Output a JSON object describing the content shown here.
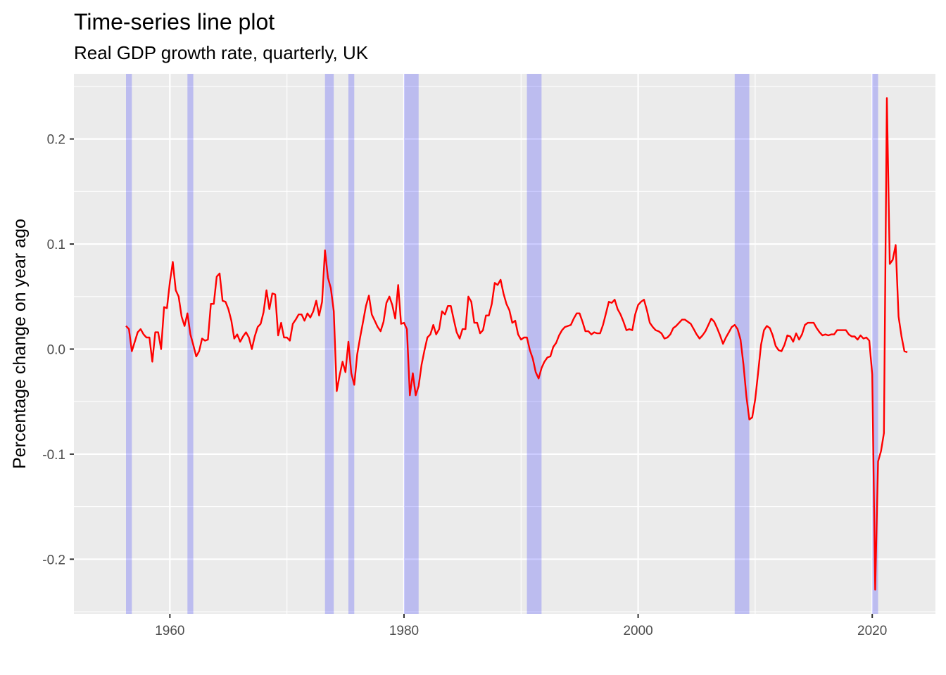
{
  "chart_data": {
    "type": "line",
    "title": "Time-series line plot",
    "subtitle": "Real GDP growth rate, quarterly, UK",
    "xlabel": "",
    "ylabel": "Percentage change on year ago",
    "xlim": [
      1951.8,
      2025.4
    ],
    "ylim": [
      -0.252,
      0.262
    ],
    "x_ticks": [
      1960,
      1980,
      2000,
      2020
    ],
    "x_tick_labels": [
      "1960",
      "1980",
      "2000",
      "2020"
    ],
    "y_ticks": [
      -0.2,
      -0.1,
      0.0,
      0.1,
      0.2
    ],
    "y_tick_labels": [
      "-0.2",
      "-0.1",
      "0.0",
      "0.1",
      "0.2"
    ],
    "grid": true,
    "legend": "none",
    "colors": {
      "line": "#ff0000",
      "recession": "#0000ff",
      "panel": "#ebebeb",
      "grid": "#ffffff"
    },
    "recessions": [
      [
        1956.25,
        1956.75
      ],
      [
        1961.5,
        1962.0
      ],
      [
        1973.25,
        1974.0
      ],
      [
        1975.25,
        1975.75
      ],
      [
        1980.0,
        1981.25
      ],
      [
        1990.5,
        1991.75
      ],
      [
        2008.25,
        2009.5
      ],
      [
        2020.0,
        2020.5
      ]
    ],
    "series": [
      {
        "x": [
          1956.25,
          1956.5,
          1956.75,
          1957.0,
          1957.25,
          1957.5,
          1957.75,
          1958.0,
          1958.25,
          1958.5,
          1958.75,
          1959.0,
          1959.25,
          1959.5,
          1959.75,
          1960.0,
          1960.25,
          1960.5,
          1960.75,
          1961.0,
          1961.25,
          1961.5,
          1961.75,
          1962.0,
          1962.25,
          1962.5,
          1962.75,
          1963.0,
          1963.25,
          1963.5,
          1963.75,
          1964.0,
          1964.25,
          1964.5,
          1964.75,
          1965.0,
          1965.25,
          1965.5,
          1965.75,
          1966.0,
          1966.25,
          1966.5,
          1966.75,
          1967.0,
          1967.25,
          1967.5,
          1967.75,
          1968.0,
          1968.25,
          1968.5,
          1968.75,
          1969.0,
          1969.25,
          1969.5,
          1969.75,
          1970.0,
          1970.25,
          1970.5,
          1970.75,
          1971.0,
          1971.25,
          1971.5,
          1971.75,
          1972.0,
          1972.25,
          1972.5,
          1972.75,
          1973.0,
          1973.25,
          1973.5,
          1973.75,
          1974.0,
          1974.25,
          1974.5,
          1974.75,
          1975.0,
          1975.25,
          1975.5,
          1975.75,
          1976.0,
          1976.25,
          1976.5,
          1976.75,
          1977.0,
          1977.25,
          1977.5,
          1977.75,
          1978.0,
          1978.25,
          1978.5,
          1978.75,
          1979.0,
          1979.25,
          1979.5,
          1979.75,
          1980.0,
          1980.25,
          1980.5,
          1980.75,
          1981.0,
          1981.25,
          1981.5,
          1981.75,
          1982.0,
          1982.25,
          1982.5,
          1982.75,
          1983.0,
          1983.25,
          1983.5,
          1983.75,
          1984.0,
          1984.25,
          1984.5,
          1984.75,
          1985.0,
          1985.25,
          1985.5,
          1985.75,
          1986.0,
          1986.25,
          1986.5,
          1986.75,
          1987.0,
          1987.25,
          1987.5,
          1987.75,
          1988.0,
          1988.25,
          1988.5,
          1988.75,
          1989.0,
          1989.25,
          1989.5,
          1989.75,
          1990.0,
          1990.25,
          1990.5,
          1990.75,
          1991.0,
          1991.25,
          1991.5,
          1991.75,
          1992.0,
          1992.25,
          1992.5,
          1992.75,
          1993.0,
          1993.25,
          1993.5,
          1993.75,
          1994.0,
          1994.25,
          1994.5,
          1994.75,
          1995.0,
          1995.25,
          1995.5,
          1995.75,
          1996.0,
          1996.25,
          1996.5,
          1996.75,
          1997.0,
          1997.25,
          1997.5,
          1997.75,
          1998.0,
          1998.25,
          1998.5,
          1998.75,
          1999.0,
          1999.25,
          1999.5,
          1999.75,
          2000.0,
          2000.25,
          2000.5,
          2000.75,
          2001.0,
          2001.25,
          2001.5,
          2001.75,
          2002.0,
          2002.25,
          2002.5,
          2002.75,
          2003.0,
          2003.25,
          2003.5,
          2003.75,
          2004.0,
          2004.25,
          2004.5,
          2004.75,
          2005.0,
          2005.25,
          2005.5,
          2005.75,
          2006.0,
          2006.25,
          2006.5,
          2006.75,
          2007.0,
          2007.25,
          2007.5,
          2007.75,
          2008.0,
          2008.25,
          2008.5,
          2008.75,
          2009.0,
          2009.25,
          2009.5,
          2009.75,
          2010.0,
          2010.25,
          2010.5,
          2010.75,
          2011.0,
          2011.25,
          2011.5,
          2011.75,
          2012.0,
          2012.25,
          2012.5,
          2012.75,
          2013.0,
          2013.25,
          2013.5,
          2013.75,
          2014.0,
          2014.25,
          2014.5,
          2014.75,
          2015.0,
          2015.25,
          2015.5,
          2015.75,
          2016.0,
          2016.25,
          2016.5,
          2016.75,
          2017.0,
          2017.25,
          2017.5,
          2017.75,
          2018.0,
          2018.25,
          2018.5,
          2018.75,
          2019.0,
          2019.25,
          2019.5,
          2019.75,
          2020.0,
          2020.25,
          2020.5,
          2020.75,
          2021.0,
          2021.25,
          2021.5,
          2021.75,
          2022.0,
          2022.25,
          2022.5,
          2022.75,
          2023.0
        ],
        "values": [
          0.022,
          0.019,
          -0.002,
          0.007,
          0.016,
          0.019,
          0.014,
          0.011,
          0.011,
          -0.012,
          0.016,
          0.016,
          0.0,
          0.04,
          0.039,
          0.064,
          0.083,
          0.056,
          0.05,
          0.031,
          0.022,
          0.034,
          0.014,
          0.004,
          -0.007,
          -0.002,
          0.01,
          0.008,
          0.009,
          0.043,
          0.043,
          0.069,
          0.072,
          0.046,
          0.045,
          0.038,
          0.027,
          0.01,
          0.014,
          0.007,
          0.012,
          0.016,
          0.011,
          0.0,
          0.012,
          0.021,
          0.024,
          0.035,
          0.056,
          0.038,
          0.053,
          0.052,
          0.013,
          0.025,
          0.011,
          0.011,
          0.008,
          0.024,
          0.028,
          0.033,
          0.033,
          0.027,
          0.034,
          0.03,
          0.036,
          0.046,
          0.032,
          0.045,
          0.094,
          0.068,
          0.058,
          0.036,
          -0.04,
          -0.025,
          -0.012,
          -0.022,
          0.007,
          -0.023,
          -0.034,
          -0.005,
          0.011,
          0.026,
          0.041,
          0.051,
          0.033,
          0.027,
          0.021,
          0.017,
          0.026,
          0.044,
          0.05,
          0.042,
          0.029,
          0.061,
          0.024,
          0.025,
          0.019,
          -0.044,
          -0.023,
          -0.044,
          -0.035,
          -0.015,
          -0.001,
          0.011,
          0.014,
          0.023,
          0.014,
          0.019,
          0.036,
          0.033,
          0.041,
          0.041,
          0.028,
          0.016,
          0.01,
          0.019,
          0.019,
          0.05,
          0.045,
          0.025,
          0.025,
          0.015,
          0.018,
          0.032,
          0.032,
          0.043,
          0.063,
          0.061,
          0.066,
          0.053,
          0.043,
          0.037,
          0.025,
          0.027,
          0.014,
          0.009,
          0.011,
          0.011,
          -0.001,
          -0.009,
          -0.022,
          -0.028,
          -0.018,
          -0.012,
          -0.008,
          -0.007,
          0.002,
          0.006,
          0.013,
          0.018,
          0.021,
          0.022,
          0.023,
          0.029,
          0.034,
          0.034,
          0.026,
          0.017,
          0.017,
          0.014,
          0.016,
          0.015,
          0.015,
          0.023,
          0.034,
          0.045,
          0.044,
          0.047,
          0.038,
          0.033,
          0.026,
          0.018,
          0.019,
          0.018,
          0.033,
          0.042,
          0.045,
          0.047,
          0.037,
          0.025,
          0.021,
          0.018,
          0.017,
          0.015,
          0.01,
          0.011,
          0.014,
          0.02,
          0.022,
          0.025,
          0.028,
          0.028,
          0.026,
          0.024,
          0.019,
          0.014,
          0.01,
          0.013,
          0.017,
          0.023,
          0.029,
          0.026,
          0.02,
          0.013,
          0.005,
          0.011,
          0.016,
          0.021,
          0.023,
          0.019,
          0.009,
          -0.015,
          -0.045,
          -0.067,
          -0.065,
          -0.048,
          -0.023,
          0.004,
          0.018,
          0.022,
          0.02,
          0.013,
          0.003,
          -0.001,
          -0.002,
          0.004,
          0.013,
          0.012,
          0.007,
          0.015,
          0.009,
          0.014,
          0.023,
          0.025,
          0.025,
          0.025,
          0.02,
          0.016,
          0.013,
          0.014,
          0.013,
          0.014,
          0.014,
          0.018,
          0.018,
          0.018,
          0.018,
          0.014,
          0.012,
          0.012,
          0.009,
          0.013,
          0.01,
          0.011,
          0.008,
          -0.024,
          -0.229,
          -0.107,
          -0.097,
          -0.08,
          0.239,
          0.081,
          0.085,
          0.099,
          0.031,
          0.012,
          -0.002,
          -0.003
        ]
      }
    ]
  }
}
